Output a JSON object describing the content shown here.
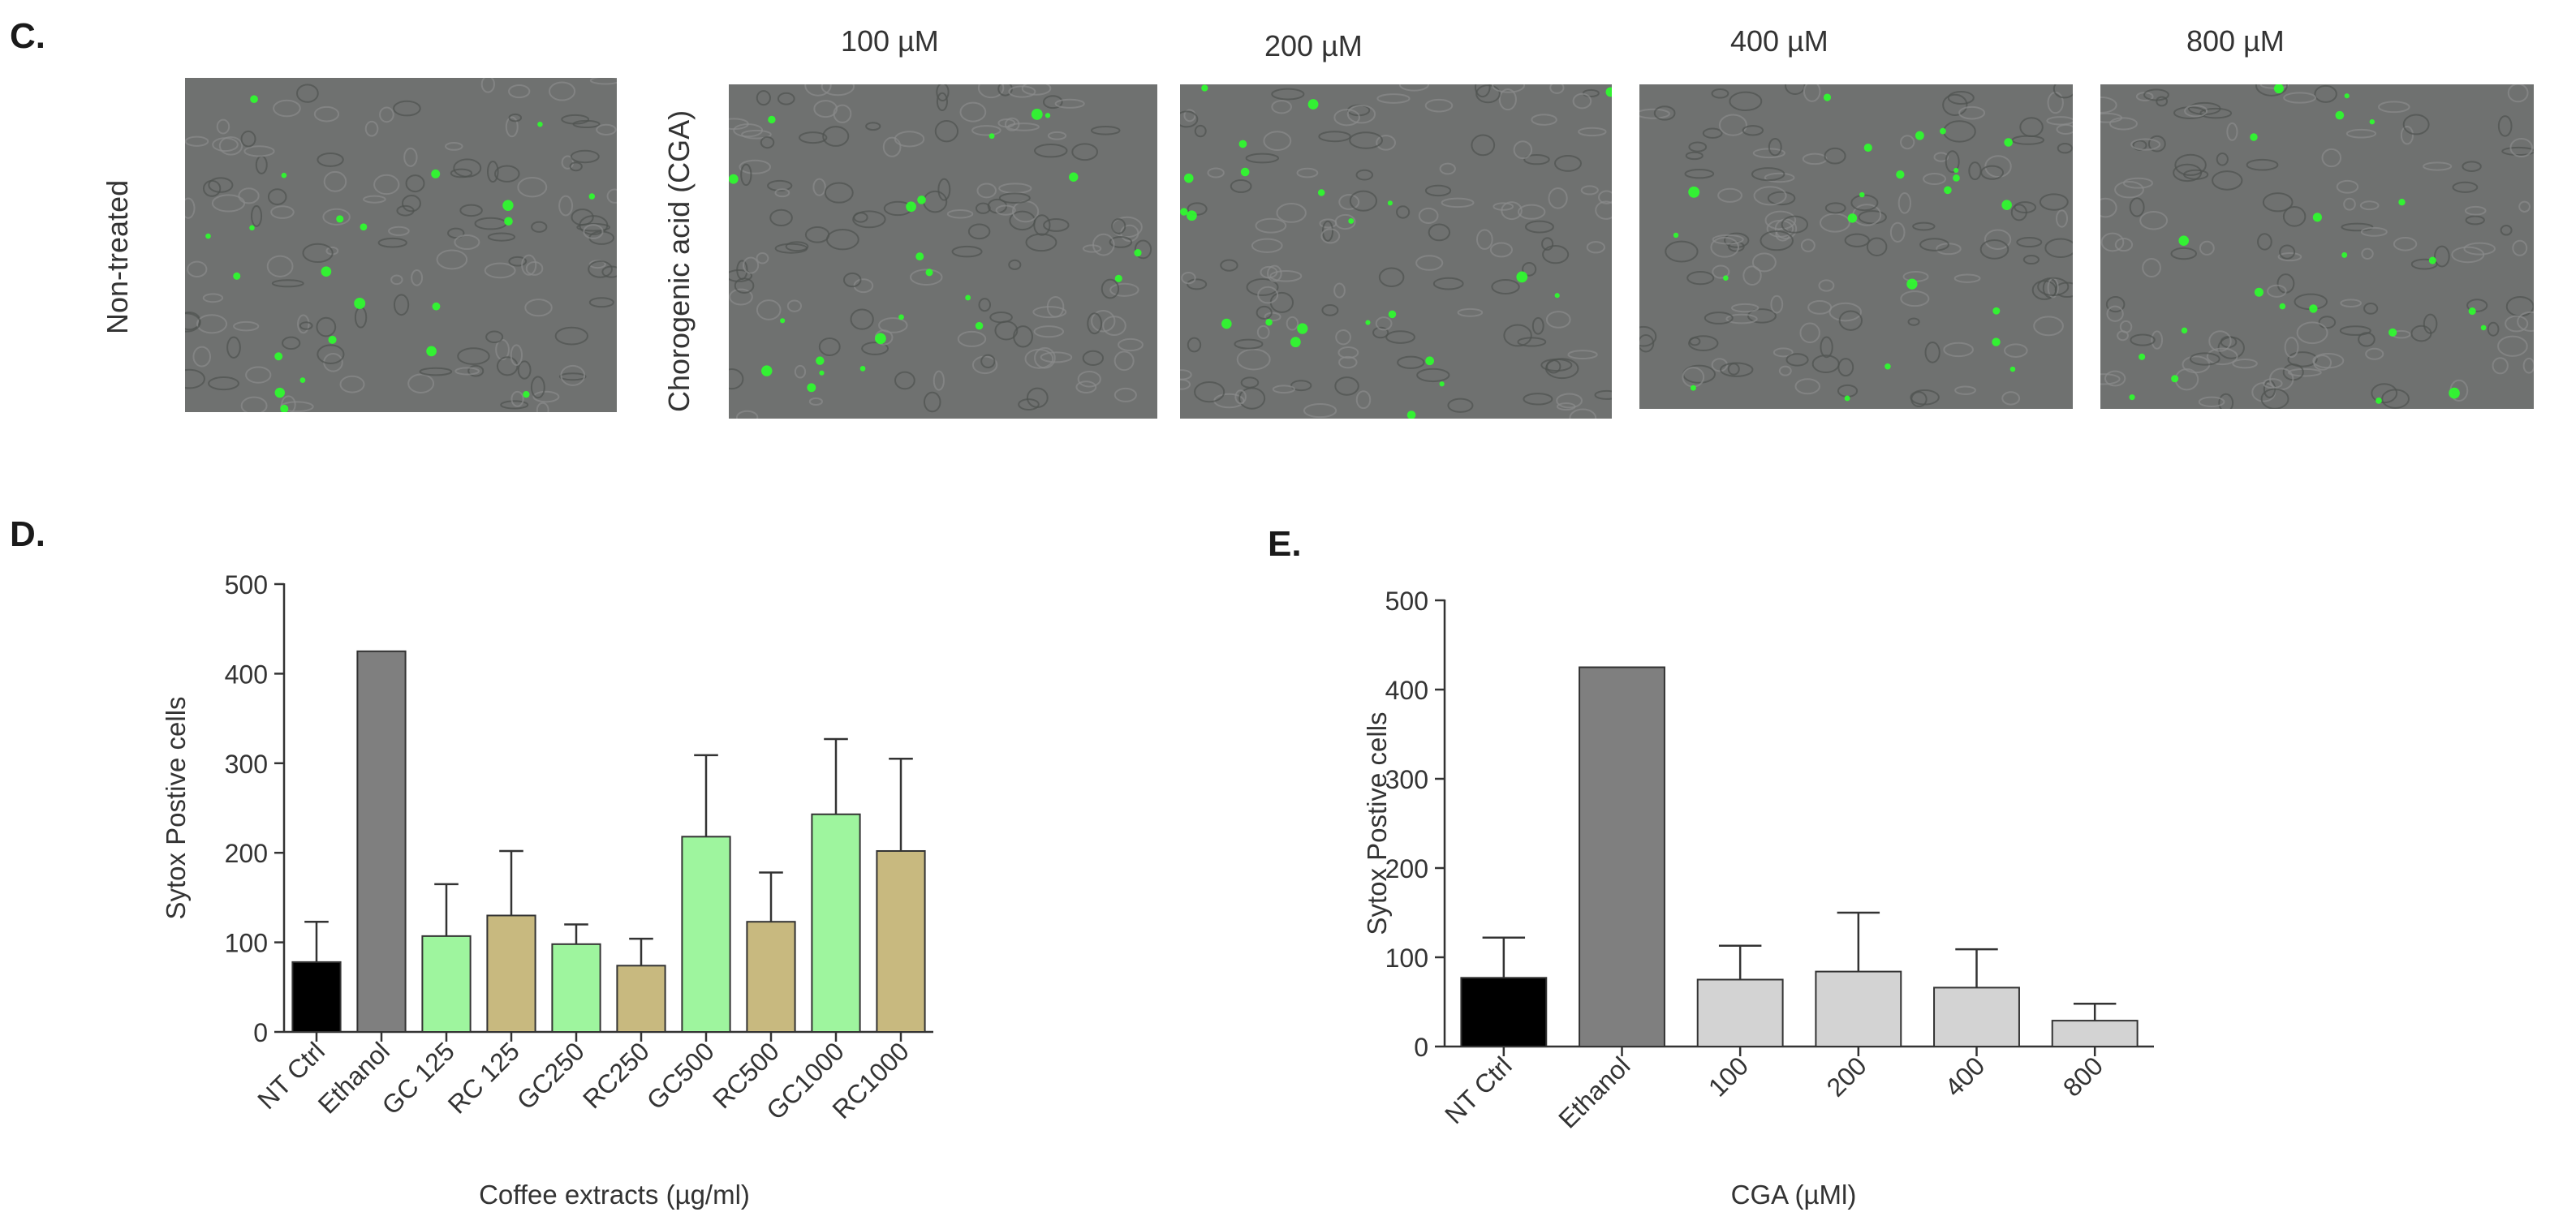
{
  "panel_c": {
    "letter": "C.",
    "row_labels": [
      "Non-treated",
      "Chorogenic acid (CGA)"
    ],
    "concentrations": [
      "100 µM",
      "200 µM",
      "400 µM",
      "800 µM"
    ]
  },
  "panel_d": {
    "letter": "D."
  },
  "panel_e": {
    "letter": "E."
  },
  "chart_data": [
    {
      "id": "D",
      "type": "bar",
      "categories": [
        "NT Ctrl",
        "Ethanol",
        "GC 125",
        "RC 125",
        "GC250",
        "RC250",
        "GC500",
        "RC500",
        "GC1000",
        "RC1000"
      ],
      "values": [
        78,
        425,
        107,
        130,
        98,
        74,
        218,
        123,
        243,
        202
      ],
      "errors": [
        45,
        0,
        58,
        72,
        22,
        30,
        91,
        55,
        84,
        103
      ],
      "colors": [
        "#000000",
        "#7f7f7f",
        "#9ef59e",
        "#c8b97f",
        "#9ef59e",
        "#c8b97f",
        "#9ef59e",
        "#c8b97f",
        "#9ef59e",
        "#c8b97f"
      ],
      "xlabel": "Coffee extracts (µg/ml)",
      "ylabel": "Sytox Postive cells",
      "ylim": [
        0,
        500
      ],
      "yticks": [
        0,
        100,
        200,
        300,
        400,
        500
      ]
    },
    {
      "id": "E",
      "type": "bar",
      "categories": [
        "NT Ctrl",
        "Ethanol",
        "100",
        "200",
        "400",
        "800"
      ],
      "values": [
        77,
        425,
        75,
        84,
        66,
        29
      ],
      "errors": [
        45,
        0,
        38,
        66,
        43,
        19
      ],
      "colors": [
        "#000000",
        "#7f7f7f",
        "#d3d3d3",
        "#d3d3d3",
        "#d3d3d3",
        "#d3d3d3"
      ],
      "xlabel": "CGA (µMl)",
      "ylabel": "Sytox Postive cells",
      "ylim": [
        0,
        500
      ],
      "yticks": [
        0,
        100,
        200,
        300,
        400,
        500
      ]
    }
  ]
}
